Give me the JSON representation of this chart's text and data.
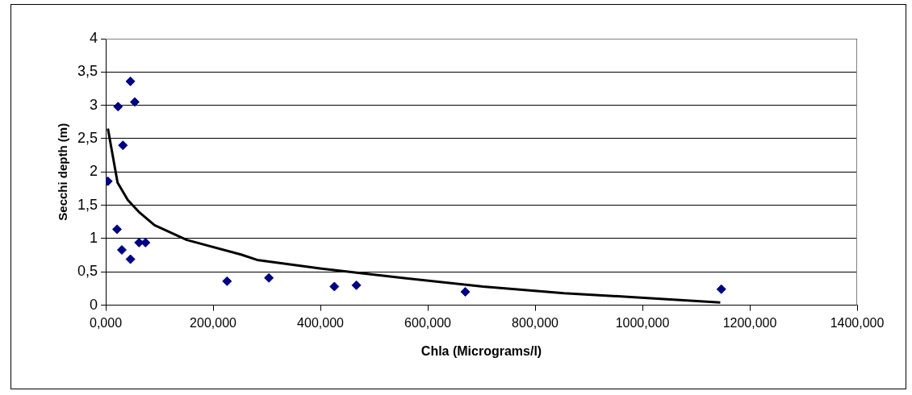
{
  "chart_data": {
    "type": "scatter",
    "xlabel": "Chla (Micrograms/l)",
    "ylabel": "Secchi depth (m)",
    "xlim": [
      0,
      1400
    ],
    "xticks": [
      {
        "value": 0,
        "label": "0,000"
      },
      {
        "value": 200,
        "label": "200,000"
      },
      {
        "value": 400,
        "label": "400,000"
      },
      {
        "value": 600,
        "label": "600,000"
      },
      {
        "value": 800,
        "label": "800,000"
      },
      {
        "value": 1000,
        "label": "1000,000"
      },
      {
        "value": 1200,
        "label": "1200,000"
      },
      {
        "value": 1400,
        "label": "1400,000"
      }
    ],
    "ylim": [
      0,
      4
    ],
    "yticks": [
      0,
      {
        "value": 0.5,
        "label": "0,5"
      },
      1,
      {
        "value": 1.5,
        "label": "1,5"
      },
      2,
      {
        "value": 2.5,
        "label": "2,5"
      },
      3,
      {
        "value": 3.5,
        "label": "3,5"
      },
      4
    ],
    "grid": "y",
    "legend": false,
    "series": [
      {
        "type": "scatter",
        "color": "#000080",
        "marker": "diamond",
        "x": [
          4,
          23,
          32,
          46,
          54,
          21,
          30,
          46,
          62,
          74,
          226,
          304,
          426,
          467,
          670,
          1147
        ],
        "values": [
          1.86,
          2.98,
          2.4,
          3.36,
          3.05,
          1.14,
          0.83,
          0.69,
          0.94,
          0.94,
          0.36,
          0.41,
          0.28,
          0.3,
          0.2,
          0.24
        ]
      },
      {
        "type": "line",
        "color": "#000000",
        "marker": "none",
        "line_style": "solid",
        "x": [
          4,
          22,
          41,
          63,
          91,
          151,
          252,
          282,
          402,
          553,
          703,
          854,
          985,
          1145
        ],
        "values": [
          2.65,
          1.84,
          1.58,
          1.39,
          1.2,
          0.98,
          0.76,
          0.68,
          0.55,
          0.41,
          0.28,
          0.18,
          0.12,
          0.04
        ]
      }
    ]
  }
}
